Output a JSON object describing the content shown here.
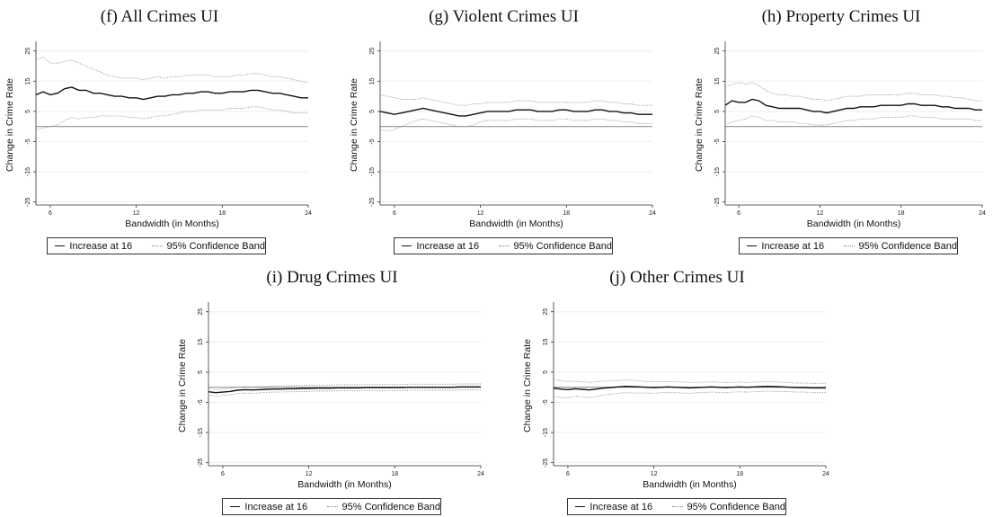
{
  "colors": {
    "estimate": "#111111",
    "band": "#8f8f8f",
    "zero_line": "#8797a5",
    "grid": "#eeeeee"
  },
  "legend": {
    "estimate": "Increase at 16",
    "band": "95% Confidence Band"
  },
  "chart_data": [
    {
      "type": "line",
      "title": "(f) All Crimes UI",
      "xlabel": "Bandwidth (in Months)",
      "ylabel": "Change in Crime Rate",
      "xlim": [
        5,
        24
      ],
      "ylim": [
        -26,
        27
      ],
      "xticks": [
        6,
        12,
        18,
        24
      ],
      "yticks": [
        25,
        15,
        5,
        -5,
        -15,
        -25
      ],
      "reference_line": 0,
      "grid": true,
      "legend_position": "bottom",
      "x": [
        5.0,
        5.5,
        6.0,
        6.5,
        7.0,
        7.5,
        8.0,
        8.5,
        9.0,
        9.5,
        10.0,
        10.5,
        11.0,
        11.5,
        12.0,
        12.5,
        13.0,
        13.5,
        14.0,
        14.5,
        15.0,
        15.5,
        16.0,
        16.5,
        17.0,
        17.5,
        18.0,
        18.5,
        19.0,
        19.5,
        20.0,
        20.5,
        21.0,
        21.5,
        22.0,
        22.5,
        23.0,
        23.5,
        24.0
      ],
      "series": [
        {
          "name": "Increase at 16",
          "values": [
            10.5,
            11.5,
            10.5,
            11.0,
            12.5,
            13.0,
            12.0,
            12.0,
            11.0,
            11.0,
            10.5,
            10.0,
            10.0,
            9.5,
            9.5,
            9.0,
            9.5,
            10.0,
            10.0,
            10.5,
            10.5,
            11.0,
            11.0,
            11.5,
            11.5,
            11.0,
            11.0,
            11.5,
            11.5,
            11.5,
            12.0,
            12.0,
            11.5,
            11.0,
            11.0,
            10.5,
            10.0,
            9.5,
            9.5
          ]
        },
        {
          "name": "95% Confidence Band",
          "values": [
            22.0,
            23.0,
            21.0,
            21.0,
            21.5,
            22.0,
            21.0,
            20.0,
            19.0,
            18.0,
            17.0,
            16.5,
            16.0,
            16.0,
            16.0,
            15.5,
            16.0,
            16.5,
            16.0,
            16.5,
            16.5,
            17.0,
            17.0,
            17.0,
            17.0,
            16.5,
            16.5,
            16.5,
            17.0,
            17.0,
            17.5,
            17.5,
            17.0,
            16.5,
            16.5,
            16.0,
            15.5,
            15.0,
            14.5
          ]
        },
        {
          "name": "95% Confidence Band",
          "values": [
            -1.0,
            -0.5,
            0.0,
            0.5,
            2.0,
            3.0,
            2.5,
            3.0,
            3.0,
            3.5,
            3.5,
            3.5,
            3.5,
            3.0,
            3.0,
            2.5,
            3.0,
            3.5,
            3.5,
            4.0,
            4.5,
            5.0,
            5.0,
            5.5,
            5.5,
            5.5,
            5.5,
            6.0,
            6.0,
            6.0,
            6.5,
            6.5,
            6.0,
            5.5,
            5.5,
            5.0,
            4.5,
            4.5,
            4.5
          ]
        }
      ]
    },
    {
      "type": "line",
      "title": "(g) Violent Crimes UI",
      "xlabel": "Bandwidth (in Months)",
      "ylabel": "Change in Crime Rate",
      "xlim": [
        5,
        24
      ],
      "ylim": [
        -26,
        27
      ],
      "xticks": [
        6,
        12,
        18,
        24
      ],
      "yticks": [
        25,
        15,
        5,
        -5,
        -15,
        -25
      ],
      "reference_line": 0,
      "grid": true,
      "legend_position": "bottom",
      "x": [
        5.0,
        5.5,
        6.0,
        6.5,
        7.0,
        7.5,
        8.0,
        8.5,
        9.0,
        9.5,
        10.0,
        10.5,
        11.0,
        11.5,
        12.0,
        12.5,
        13.0,
        13.5,
        14.0,
        14.5,
        15.0,
        15.5,
        16.0,
        16.5,
        17.0,
        17.5,
        18.0,
        18.5,
        19.0,
        19.5,
        20.0,
        20.5,
        21.0,
        21.5,
        22.0,
        22.5,
        23.0,
        23.5,
        24.0
      ],
      "series": [
        {
          "name": "Increase at 16",
          "values": [
            5.0,
            4.5,
            4.0,
            4.5,
            5.0,
            5.5,
            6.0,
            5.5,
            5.0,
            4.5,
            4.0,
            3.5,
            3.5,
            4.0,
            4.5,
            5.0,
            5.0,
            5.0,
            5.0,
            5.5,
            5.5,
            5.5,
            5.0,
            5.0,
            5.0,
            5.5,
            5.5,
            5.0,
            5.0,
            5.0,
            5.5,
            5.5,
            5.0,
            5.0,
            4.5,
            4.5,
            4.0,
            4.0,
            4.0
          ]
        },
        {
          "name": "95% Confidence Band",
          "values": [
            10.5,
            10.0,
            9.5,
            9.0,
            9.0,
            9.0,
            9.5,
            9.0,
            8.5,
            8.0,
            7.5,
            7.0,
            7.0,
            7.5,
            7.5,
            8.0,
            8.0,
            8.0,
            8.0,
            8.5,
            8.5,
            8.5,
            8.0,
            8.0,
            8.0,
            8.0,
            8.0,
            8.0,
            8.0,
            8.0,
            8.5,
            8.5,
            8.0,
            8.0,
            7.5,
            7.5,
            7.0,
            7.0,
            7.0
          ]
        },
        {
          "name": "95% Confidence Band",
          "values": [
            -1.0,
            -1.5,
            -1.0,
            0.0,
            1.0,
            2.0,
            2.5,
            2.0,
            1.5,
            1.0,
            0.5,
            0.0,
            0.0,
            0.5,
            1.5,
            2.0,
            2.0,
            2.0,
            2.0,
            2.5,
            2.5,
            2.5,
            2.0,
            2.0,
            2.0,
            2.5,
            2.5,
            2.0,
            2.0,
            2.0,
            2.5,
            2.5,
            2.0,
            2.0,
            1.5,
            1.5,
            1.0,
            1.0,
            1.0
          ]
        }
      ]
    },
    {
      "type": "line",
      "title": "(h) Property Crimes UI",
      "xlabel": "Bandwidth (in Months)",
      "ylabel": "Change in Crime Rate",
      "xlim": [
        5,
        24
      ],
      "ylim": [
        -26,
        27
      ],
      "xticks": [
        6,
        12,
        18,
        24
      ],
      "yticks": [
        25,
        15,
        5,
        -5,
        -15,
        -25
      ],
      "reference_line": 0,
      "grid": true,
      "legend_position": "bottom",
      "x": [
        5.0,
        5.5,
        6.0,
        6.5,
        7.0,
        7.5,
        8.0,
        8.5,
        9.0,
        9.5,
        10.0,
        10.5,
        11.0,
        11.5,
        12.0,
        12.5,
        13.0,
        13.5,
        14.0,
        14.5,
        15.0,
        15.5,
        16.0,
        16.5,
        17.0,
        17.5,
        18.0,
        18.5,
        19.0,
        19.5,
        20.0,
        20.5,
        21.0,
        21.5,
        22.0,
        22.5,
        23.0,
        23.5,
        24.0
      ],
      "series": [
        {
          "name": "Increase at 16",
          "values": [
            7.0,
            8.5,
            8.0,
            8.0,
            9.0,
            8.5,
            7.0,
            6.5,
            6.0,
            6.0,
            6.0,
            6.0,
            5.5,
            5.0,
            5.0,
            4.5,
            5.0,
            5.5,
            6.0,
            6.0,
            6.5,
            6.5,
            6.5,
            7.0,
            7.0,
            7.0,
            7.0,
            7.5,
            7.5,
            7.0,
            7.0,
            7.0,
            6.5,
            6.5,
            6.0,
            6.0,
            6.0,
            5.5,
            5.5
          ]
        },
        {
          "name": "95% Confidence Band",
          "values": [
            13.0,
            14.0,
            14.5,
            14.0,
            14.5,
            13.5,
            12.0,
            11.0,
            10.5,
            10.5,
            10.0,
            10.0,
            9.5,
            9.0,
            9.0,
            8.5,
            9.0,
            9.5,
            10.0,
            10.0,
            10.0,
            10.5,
            10.5,
            10.5,
            10.5,
            10.5,
            10.5,
            11.0,
            11.0,
            10.5,
            10.5,
            10.5,
            10.0,
            10.0,
            9.5,
            9.5,
            9.0,
            8.5,
            8.5
          ]
        },
        {
          "name": "95% Confidence Band",
          "values": [
            0.5,
            1.5,
            2.0,
            2.5,
            3.5,
            3.0,
            2.0,
            2.0,
            1.5,
            1.5,
            1.5,
            1.0,
            1.0,
            0.5,
            0.5,
            0.5,
            1.0,
            1.5,
            2.0,
            2.0,
            2.5,
            2.5,
            2.5,
            3.0,
            3.0,
            3.0,
            3.0,
            3.5,
            3.5,
            3.0,
            3.0,
            3.0,
            2.5,
            2.5,
            2.5,
            2.5,
            2.5,
            2.0,
            2.0
          ]
        }
      ]
    },
    {
      "type": "line",
      "title": "(i) Drug Crimes UI",
      "xlabel": "Bandwidth (in Months)",
      "ylabel": "Change in Crime Rate",
      "xlim": [
        5,
        24
      ],
      "ylim": [
        -26,
        27
      ],
      "xticks": [
        6,
        12,
        18,
        24
      ],
      "yticks": [
        25,
        15,
        5,
        -5,
        -15,
        -25
      ],
      "reference_line": 0,
      "grid": true,
      "legend_position": "bottom",
      "x": [
        5.0,
        5.5,
        6.0,
        6.5,
        7.0,
        7.5,
        8.0,
        8.5,
        9.0,
        9.5,
        10.0,
        10.5,
        11.0,
        11.5,
        12.0,
        12.5,
        13.0,
        13.5,
        14.0,
        14.5,
        15.0,
        15.5,
        16.0,
        16.5,
        17.0,
        17.5,
        18.0,
        18.5,
        19.0,
        19.5,
        20.0,
        20.5,
        21.0,
        21.5,
        22.0,
        22.5,
        23.0,
        23.5,
        24.0
      ],
      "series": [
        {
          "name": "Increase at 16",
          "values": [
            -1.5,
            -1.8,
            -1.6,
            -1.4,
            -1.0,
            -0.8,
            -0.9,
            -0.8,
            -0.7,
            -0.6,
            -0.6,
            -0.5,
            -0.5,
            -0.4,
            -0.4,
            -0.3,
            -0.3,
            -0.3,
            -0.2,
            -0.2,
            -0.2,
            -0.2,
            -0.1,
            -0.1,
            -0.1,
            -0.1,
            -0.1,
            -0.1,
            0.0,
            0.0,
            0.0,
            0.0,
            0.0,
            0.0,
            0.0,
            0.1,
            0.1,
            0.1,
            0.1
          ]
        },
        {
          "name": "95% Confidence Band",
          "values": [
            -0.5,
            -0.8,
            -0.6,
            -0.4,
            0.0,
            0.2,
            0.1,
            0.2,
            0.3,
            0.4,
            0.4,
            0.5,
            0.5,
            0.6,
            0.6,
            0.7,
            0.7,
            0.7,
            0.8,
            0.8,
            0.8,
            0.8,
            0.9,
            0.9,
            0.9,
            0.9,
            0.9,
            0.9,
            1.0,
            1.0,
            1.0,
            1.0,
            1.0,
            1.0,
            1.0,
            1.1,
            1.1,
            1.1,
            1.1
          ]
        },
        {
          "name": "95% Confidence Band",
          "values": [
            -2.6,
            -2.9,
            -2.7,
            -2.5,
            -2.1,
            -1.9,
            -2.0,
            -1.9,
            -1.7,
            -1.6,
            -1.6,
            -1.5,
            -1.5,
            -1.4,
            -1.4,
            -1.3,
            -1.3,
            -1.3,
            -1.2,
            -1.2,
            -1.2,
            -1.2,
            -1.1,
            -1.1,
            -1.1,
            -1.1,
            -1.1,
            -1.1,
            -1.0,
            -1.0,
            -1.0,
            -1.0,
            -1.0,
            -1.0,
            -1.0,
            -0.9,
            -0.9,
            -0.9,
            -0.9
          ]
        }
      ]
    },
    {
      "type": "line",
      "title": "(j) Other Crimes UI",
      "xlabel": "Bandwidth (in Months)",
      "ylabel": "Change in Crime Rate",
      "xlim": [
        5,
        24
      ],
      "ylim": [
        -26,
        27
      ],
      "xticks": [
        6,
        12,
        18,
        24
      ],
      "yticks": [
        25,
        15,
        5,
        -5,
        -15,
        -25
      ],
      "reference_line": 0,
      "grid": true,
      "legend_position": "bottom",
      "x": [
        5.0,
        5.5,
        6.0,
        6.5,
        7.0,
        7.5,
        8.0,
        8.5,
        9.0,
        9.5,
        10.0,
        10.5,
        11.0,
        11.5,
        12.0,
        12.5,
        13.0,
        13.5,
        14.0,
        14.5,
        15.0,
        15.5,
        16.0,
        16.5,
        17.0,
        17.5,
        18.0,
        18.5,
        19.0,
        19.5,
        20.0,
        20.5,
        21.0,
        21.5,
        22.0,
        22.5,
        23.0,
        23.5,
        24.0
      ],
      "series": [
        {
          "name": "Increase at 16",
          "values": [
            -0.3,
            -0.6,
            -0.8,
            -0.5,
            -0.7,
            -0.9,
            -0.6,
            -0.3,
            -0.1,
            0.1,
            0.3,
            0.2,
            0.1,
            0.0,
            -0.1,
            0.0,
            0.1,
            0.0,
            -0.1,
            -0.2,
            -0.1,
            0.0,
            0.1,
            0.0,
            -0.1,
            0.0,
            0.1,
            0.0,
            0.1,
            0.2,
            0.3,
            0.2,
            0.1,
            0.0,
            -0.1,
            -0.1,
            -0.2,
            -0.2,
            -0.2
          ]
        },
        {
          "name": "95% Confidence Band",
          "values": [
            2.5,
            2.2,
            1.9,
            2.0,
            1.8,
            1.6,
            1.8,
            2.0,
            2.1,
            2.2,
            2.4,
            2.3,
            2.1,
            1.9,
            1.8,
            1.8,
            1.9,
            1.8,
            1.7,
            1.6,
            1.6,
            1.7,
            1.8,
            1.7,
            1.6,
            1.6,
            1.7,
            1.6,
            1.7,
            1.8,
            1.9,
            1.8,
            1.6,
            1.5,
            1.4,
            1.4,
            1.3,
            1.3,
            1.3
          ]
        },
        {
          "name": "95% Confidence Band",
          "values": [
            -3.1,
            -3.4,
            -3.5,
            -3.0,
            -3.2,
            -3.4,
            -3.0,
            -2.6,
            -2.3,
            -2.0,
            -1.8,
            -1.9,
            -1.9,
            -1.9,
            -2.0,
            -1.8,
            -1.7,
            -1.8,
            -1.9,
            -2.0,
            -1.8,
            -1.7,
            -1.6,
            -1.7,
            -1.8,
            -1.6,
            -1.5,
            -1.6,
            -1.5,
            -1.4,
            -1.3,
            -1.4,
            -1.4,
            -1.5,
            -1.6,
            -1.6,
            -1.7,
            -1.7,
            -1.7
          ]
        }
      ]
    }
  ]
}
